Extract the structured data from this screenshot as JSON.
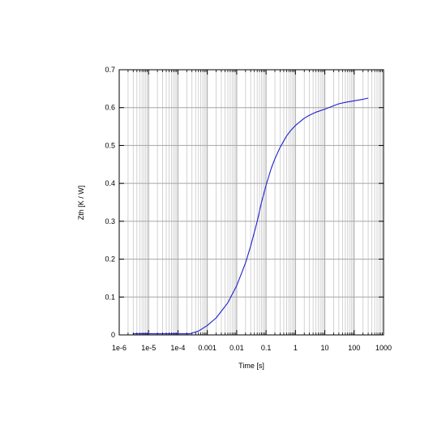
{
  "chart_data": {
    "type": "line",
    "title": "",
    "xlabel": "Time [s]",
    "ylabel": "Zth [K / W]",
    "xscale": "log",
    "xlim": [
      1e-06,
      1000
    ],
    "ylim": [
      0,
      0.7
    ],
    "grid": true,
    "legend": "none",
    "x_ticks": [
      {
        "value": 1e-06,
        "label": "1e-6"
      },
      {
        "value": 1e-05,
        "label": "1e-5"
      },
      {
        "value": 0.0001,
        "label": "1e-4"
      },
      {
        "value": 0.001,
        "label": "0.001"
      },
      {
        "value": 0.01,
        "label": "0.01"
      },
      {
        "value": 0.1,
        "label": "0.1"
      },
      {
        "value": 1,
        "label": "1"
      },
      {
        "value": 10,
        "label": "10"
      },
      {
        "value": 100,
        "label": "100"
      },
      {
        "value": 1000,
        "label": "1000"
      }
    ],
    "y_ticks": [
      {
        "value": 0,
        "label": "0"
      },
      {
        "value": 0.1,
        "label": "0.1"
      },
      {
        "value": 0.2,
        "label": "0.2"
      },
      {
        "value": 0.3,
        "label": "0.3"
      },
      {
        "value": 0.4,
        "label": "0.4"
      },
      {
        "value": 0.5,
        "label": "0.5"
      },
      {
        "value": 0.6,
        "label": "0.6"
      },
      {
        "value": 0.7,
        "label": "0.7"
      }
    ],
    "series": [
      {
        "color": "#1f1fd0",
        "x": [
          3e-06,
          1e-05,
          0.0001,
          0.00025,
          0.0005,
          0.001,
          0.002,
          0.005,
          0.01,
          0.02,
          0.03,
          0.05,
          0.07,
          0.1,
          0.15,
          0.2,
          0.3,
          0.5,
          0.7,
          1,
          2,
          3,
          5,
          10,
          20,
          30,
          50,
          100,
          200,
          300
        ],
        "y": [
          0.003,
          0.003,
          0.003,
          0.003,
          0.01,
          0.025,
          0.045,
          0.085,
          0.13,
          0.19,
          0.235,
          0.3,
          0.35,
          0.395,
          0.44,
          0.465,
          0.495,
          0.525,
          0.54,
          0.553,
          0.572,
          0.58,
          0.588,
          0.596,
          0.605,
          0.61,
          0.614,
          0.618,
          0.622,
          0.625
        ]
      }
    ]
  }
}
